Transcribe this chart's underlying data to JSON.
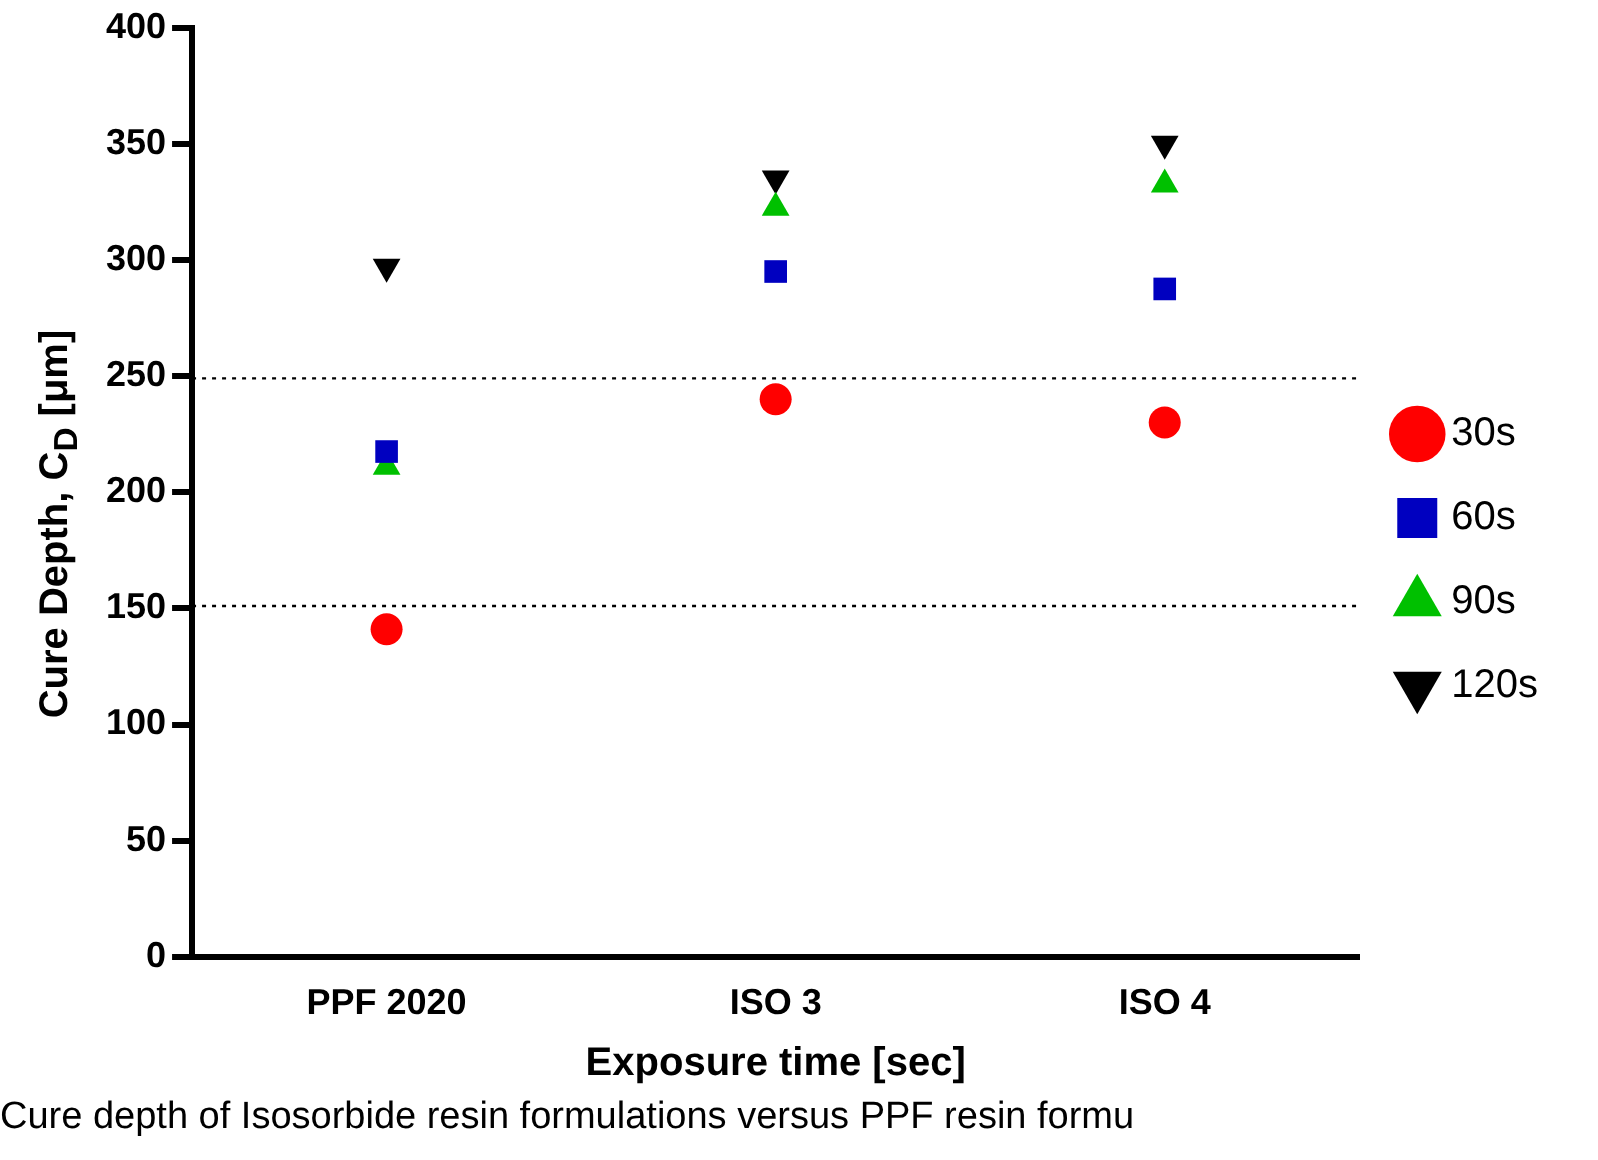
{
  "chart_data": {
    "type": "scatter",
    "xlabel": "Exposure time [sec]",
    "ylabel": "Cure Depth, C$_{D}$ [μm]",
    "categories": [
      "PPF 2020",
      "ISO 3",
      "ISO 4"
    ],
    "series": [
      {
        "name": "30s",
        "color": "#ff0000",
        "marker": "circle",
        "values": [
          141,
          240,
          230
        ]
      },
      {
        "name": "60s",
        "color": "#0000c0",
        "marker": "square",
        "values": [
          217.5,
          295,
          287.5
        ]
      },
      {
        "name": "90s",
        "color": "#00c000",
        "marker": "triangle",
        "values": [
          211,
          322.5,
          332.5
        ]
      },
      {
        "name": "120s",
        "color": "#000000",
        "marker": "triangle-down",
        "values": [
          297,
          335,
          350
        ]
      }
    ],
    "ylim": [
      0,
      400
    ],
    "yticks": [
      0,
      50,
      100,
      150,
      200,
      250,
      300,
      350,
      400
    ],
    "grid": false,
    "legend": "right",
    "ref_lines": [
      {
        "axis": "y",
        "value": 249,
        "line_style": "dotted"
      },
      {
        "axis": "y",
        "value": 151,
        "line_style": "dotted"
      }
    ],
    "annotations": [
      "Cure depth of Isosorbide resin formulations versus PPF resin formu"
    ]
  }
}
